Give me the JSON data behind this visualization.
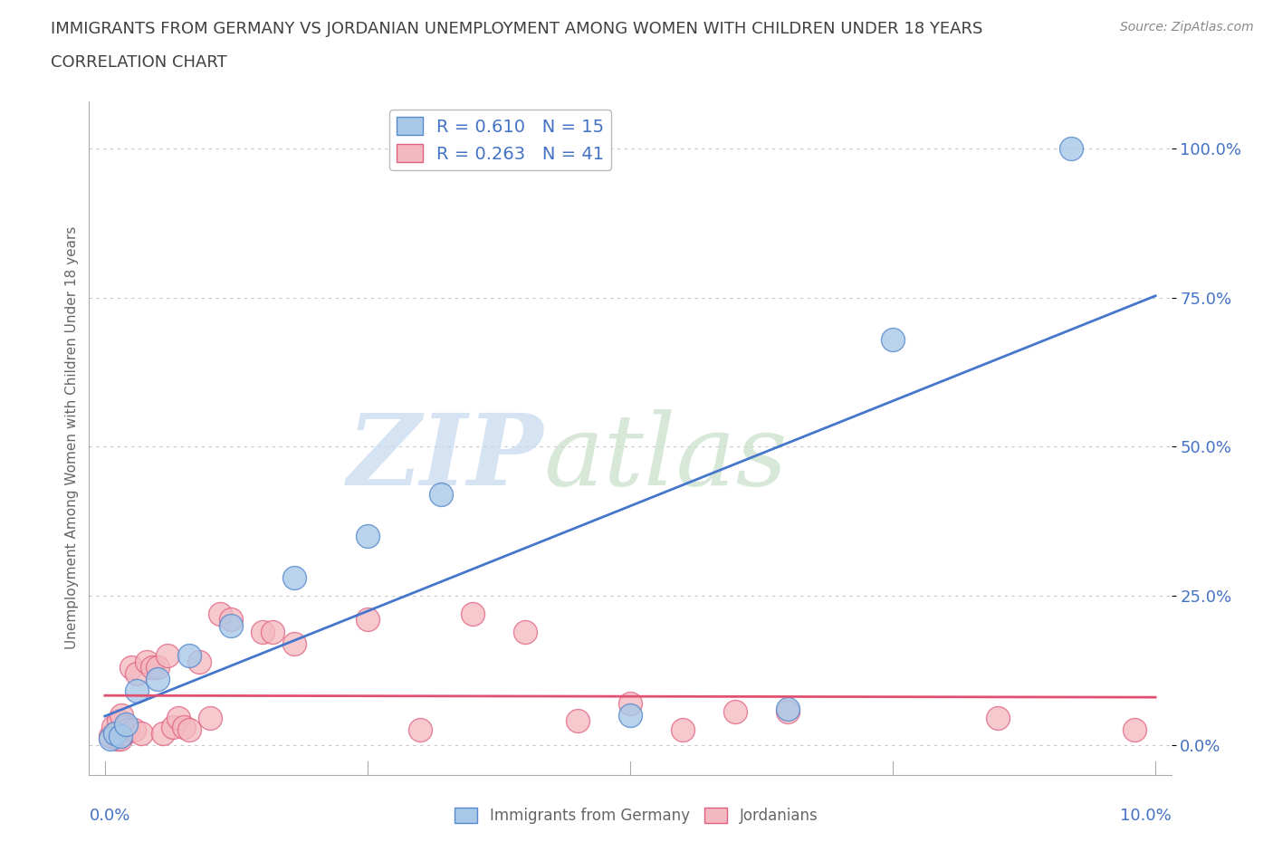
{
  "title": "IMMIGRANTS FROM GERMANY VS JORDANIAN UNEMPLOYMENT AMONG WOMEN WITH CHILDREN UNDER 18 YEARS",
  "subtitle": "CORRELATION CHART",
  "source": "Source: ZipAtlas.com",
  "ylabel": "Unemployment Among Women with Children Under 18 years",
  "xlim": [
    0.0,
    10.0
  ],
  "ylim": [
    0.0,
    100.0
  ],
  "yticks": [
    0,
    25,
    50,
    75,
    100
  ],
  "ytick_labels": [
    "0.0%",
    "25.0%",
    "50.0%",
    "75.0%",
    "100.0%"
  ],
  "blue_R": 0.61,
  "blue_N": 15,
  "pink_R": 0.263,
  "pink_N": 41,
  "blue_color": "#a8c8e8",
  "pink_color": "#f4b8c0",
  "blue_edge_color": "#5588cc",
  "pink_edge_color": "#e06080",
  "blue_line_color": "#4477cc",
  "pink_line_color": "#e05070",
  "blue_scatter": [
    [
      0.05,
      1.0
    ],
    [
      0.1,
      2.0
    ],
    [
      0.15,
      1.5
    ],
    [
      0.2,
      3.5
    ],
    [
      0.3,
      9.0
    ],
    [
      0.5,
      11.0
    ],
    [
      0.8,
      15.0
    ],
    [
      1.2,
      20.0
    ],
    [
      1.8,
      28.0
    ],
    [
      2.5,
      35.0
    ],
    [
      3.2,
      42.0
    ],
    [
      5.0,
      5.0
    ],
    [
      6.5,
      6.0
    ],
    [
      7.5,
      68.0
    ],
    [
      9.2,
      100.0
    ]
  ],
  "pink_scatter": [
    [
      0.05,
      1.5
    ],
    [
      0.08,
      3.0
    ],
    [
      0.1,
      2.0
    ],
    [
      0.12,
      1.0
    ],
    [
      0.13,
      4.0
    ],
    [
      0.15,
      1.0
    ],
    [
      0.16,
      5.0
    ],
    [
      0.18,
      2.0
    ],
    [
      0.2,
      3.0
    ],
    [
      0.22,
      2.5
    ],
    [
      0.25,
      13.0
    ],
    [
      0.28,
      2.5
    ],
    [
      0.3,
      12.0
    ],
    [
      0.35,
      2.0
    ],
    [
      0.4,
      14.0
    ],
    [
      0.45,
      13.0
    ],
    [
      0.5,
      13.0
    ],
    [
      0.55,
      2.0
    ],
    [
      0.6,
      15.0
    ],
    [
      0.65,
      3.0
    ],
    [
      0.7,
      4.5
    ],
    [
      0.75,
      3.0
    ],
    [
      0.8,
      2.5
    ],
    [
      0.9,
      14.0
    ],
    [
      1.0,
      4.5
    ],
    [
      1.1,
      22.0
    ],
    [
      1.2,
      21.0
    ],
    [
      1.5,
      19.0
    ],
    [
      1.6,
      19.0
    ],
    [
      1.8,
      17.0
    ],
    [
      2.5,
      21.0
    ],
    [
      3.0,
      2.5
    ],
    [
      3.5,
      22.0
    ],
    [
      4.0,
      19.0
    ],
    [
      4.5,
      4.0
    ],
    [
      5.0,
      7.0
    ],
    [
      5.5,
      2.5
    ],
    [
      6.0,
      5.5
    ],
    [
      6.5,
      5.5
    ],
    [
      8.5,
      4.5
    ],
    [
      9.8,
      2.5
    ]
  ],
  "bg_color": "#ffffff",
  "grid_color": "#c8c8c8",
  "title_color": "#404040",
  "axis_label_color": "#666666",
  "tick_label_color": "#4472c4",
  "legend_fontsize": 14,
  "title_fontsize": 13,
  "subtitle_fontsize": 13
}
